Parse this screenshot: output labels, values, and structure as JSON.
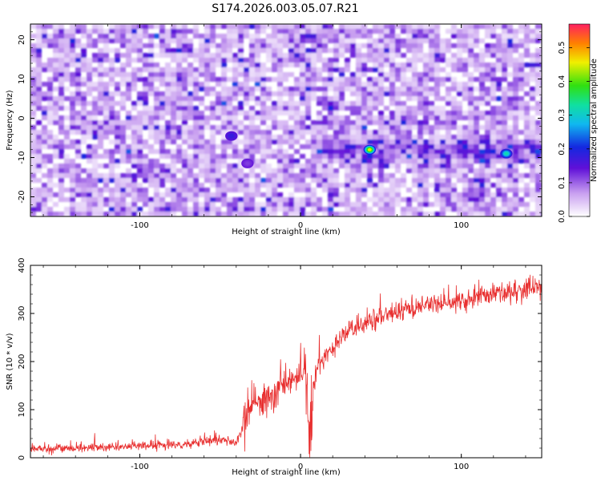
{
  "chart_data": [
    {
      "type": "heatmap",
      "title": "S174.2026.003.05.07.R21",
      "xlabel": "Height of straight line (km)",
      "ylabel": "Frequency (Hz)",
      "xlim": [
        -168,
        150
      ],
      "ylim": [
        -25,
        24
      ],
      "xticks": [
        -100,
        0,
        100
      ],
      "yticks": [
        -20,
        -10,
        0,
        10,
        20
      ],
      "colorbar": {
        "label": "Normalized spectral amplitude",
        "range": [
          0,
          0.57
        ],
        "ticks": [
          "0.0",
          "0.1",
          "0.2",
          "0.3",
          "0.4",
          "0.5"
        ]
      },
      "features": [
        {
          "x": -43,
          "y": -4.5,
          "amplitude": 0.18
        },
        {
          "x": -33,
          "y": -11.5,
          "amplitude": 0.12
        },
        {
          "x": 43,
          "y": -8,
          "amplitude": 0.45
        },
        {
          "x": 128,
          "y": -9,
          "amplitude": 0.32
        }
      ],
      "signal_band_y": -8.5
    },
    {
      "type": "line",
      "xlabel": "Height of straight line (km)",
      "ylabel": "SNR (10 * v/v)",
      "xlim": [
        -168,
        150
      ],
      "ylim": [
        0,
        400
      ],
      "xticks": [
        -100,
        0,
        100
      ],
      "yticks": [
        0,
        100,
        200,
        300,
        400
      ],
      "color": "#e83030",
      "series": [
        {
          "name": "SNR",
          "x": [
            -168,
            -120,
            -70,
            -50,
            -40,
            -35,
            -30,
            -20,
            -10,
            0,
            3,
            5,
            10,
            20,
            30,
            50,
            70,
            100,
            120,
            150
          ],
          "y": [
            18,
            22,
            28,
            40,
            30,
            70,
            110,
            125,
            150,
            170,
            190,
            60,
            190,
            230,
            265,
            295,
            315,
            325,
            340,
            355
          ]
        }
      ]
    }
  ]
}
